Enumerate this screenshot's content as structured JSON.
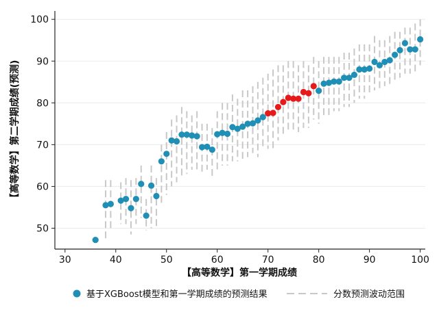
{
  "chart_data": {
    "type": "scatter",
    "xlabel": "【高等数学】第一学期成绩",
    "ylabel": "【高等数学】第二学期成绩(预测)",
    "xlim": [
      28,
      101
    ],
    "ylim": [
      45,
      102
    ],
    "xticks": [
      30,
      40,
      50,
      60,
      70,
      80,
      90,
      100
    ],
    "yticks": [
      50,
      60,
      70,
      80,
      90,
      100
    ],
    "grid": "horizontal",
    "legend_position": "bottom",
    "colors": {
      "prediction": "#1f8fb6",
      "highlight": "#e6191b",
      "range": "#c8c8c8",
      "grid": "#e6ecf0"
    },
    "series": [
      {
        "name": "基于XGBoost模型和第一学期成绩的预测结果",
        "points": [
          [
            36,
            47.2
          ],
          [
            38,
            55.5
          ],
          [
            39,
            55.8
          ],
          [
            41,
            56.6
          ],
          [
            42,
            57
          ],
          [
            43,
            54.8
          ],
          [
            44,
            57
          ],
          [
            45,
            60.6
          ],
          [
            46,
            53
          ],
          [
            47,
            60.2
          ],
          [
            48,
            57.7
          ],
          [
            49,
            66
          ],
          [
            50,
            67.8
          ],
          [
            51,
            71
          ],
          [
            52,
            70.8
          ],
          [
            53,
            72.4
          ],
          [
            54,
            72.4
          ],
          [
            55,
            72.2
          ],
          [
            56,
            72
          ],
          [
            57,
            69.4
          ],
          [
            58,
            69.5
          ],
          [
            59,
            68.8
          ],
          [
            60,
            72.5
          ],
          [
            61,
            72.8
          ],
          [
            62,
            72.6
          ],
          [
            63,
            74.2
          ],
          [
            64,
            73.8
          ],
          [
            65,
            74.3
          ],
          [
            66,
            75
          ],
          [
            67,
            75.1
          ],
          [
            68,
            75.8
          ],
          [
            69,
            76.6
          ],
          [
            70,
            77.5
          ],
          [
            71,
            77.6
          ],
          [
            72,
            79
          ],
          [
            73,
            80.2
          ],
          [
            74,
            81.2
          ],
          [
            75,
            81
          ],
          [
            76,
            81
          ],
          [
            77,
            82.6
          ],
          [
            78,
            82.3
          ],
          [
            79,
            84
          ],
          [
            80,
            82.9
          ],
          [
            81,
            84.6
          ],
          [
            82,
            84.8
          ],
          [
            83,
            85.1
          ],
          [
            84,
            85.1
          ],
          [
            85,
            86
          ],
          [
            86,
            86
          ],
          [
            87,
            86.7
          ],
          [
            88,
            88
          ],
          [
            89,
            88
          ],
          [
            90,
            88.2
          ],
          [
            91,
            89.8
          ],
          [
            92,
            89
          ],
          [
            93,
            89.8
          ],
          [
            94,
            90.2
          ],
          [
            95,
            91.5
          ],
          [
            96,
            92.6
          ],
          [
            97,
            94.3
          ],
          [
            98,
            92.8
          ],
          [
            99,
            92.8
          ],
          [
            100,
            95.2
          ]
        ]
      },
      {
        "name": "分数预测波动范围",
        "ranges": [
          [
            38,
            47.5,
            61.5
          ],
          [
            39,
            49.5,
            61.5
          ],
          [
            41,
            51,
            61
          ],
          [
            42,
            51,
            62
          ],
          [
            43,
            48.5,
            61.5
          ],
          [
            44,
            51,
            62
          ],
          [
            45,
            52.5,
            65
          ],
          [
            46,
            49.5,
            57
          ],
          [
            47,
            50,
            65
          ],
          [
            48,
            50,
            62
          ],
          [
            49,
            56,
            70
          ],
          [
            50,
            58,
            73
          ],
          [
            51,
            60,
            76
          ],
          [
            52,
            61,
            77
          ],
          [
            53,
            62,
            79
          ],
          [
            54,
            63,
            78
          ],
          [
            55,
            64,
            77
          ],
          [
            56,
            64,
            78
          ],
          [
            57,
            63,
            75
          ],
          [
            58,
            64,
            75
          ],
          [
            59,
            62,
            74
          ],
          [
            60,
            64,
            78
          ],
          [
            61,
            65,
            80
          ],
          [
            62,
            65,
            80
          ],
          [
            63,
            66,
            82
          ],
          [
            64,
            66,
            81
          ],
          [
            65,
            66,
            83
          ],
          [
            66,
            67,
            83
          ],
          [
            67,
            68,
            84
          ],
          [
            68,
            67,
            85
          ],
          [
            69,
            69,
            86
          ],
          [
            70,
            69,
            87
          ],
          [
            71,
            69,
            88
          ],
          [
            72,
            71,
            89
          ],
          [
            73,
            72,
            89
          ],
          [
            74,
            73,
            90
          ],
          [
            75,
            73,
            90
          ],
          [
            76,
            73,
            89
          ],
          [
            77,
            74,
            90
          ],
          [
            78,
            74,
            89
          ],
          [
            79,
            76,
            91
          ],
          [
            80,
            75,
            90
          ],
          [
            81,
            77,
            91
          ],
          [
            82,
            77,
            91
          ],
          [
            83,
            78,
            91
          ],
          [
            84,
            78,
            91
          ],
          [
            85,
            79,
            92
          ],
          [
            86,
            79,
            92
          ],
          [
            87,
            80,
            93
          ],
          [
            88,
            81,
            94
          ],
          [
            89,
            81,
            94
          ],
          [
            90,
            82,
            94
          ],
          [
            91,
            83,
            96
          ],
          [
            92,
            83,
            95
          ],
          [
            93,
            84,
            95
          ],
          [
            94,
            84,
            96
          ],
          [
            95,
            85,
            97
          ],
          [
            96,
            86,
            97
          ],
          [
            97,
            87,
            98
          ],
          [
            98,
            87,
            98
          ],
          [
            99,
            87,
            99
          ],
          [
            100,
            89,
            100
          ]
        ]
      }
    ],
    "highlight_x_range": [
      70,
      79
    ]
  },
  "legend": {
    "item1": "基于XGBoost模型和第一学期成绩的预测结果",
    "item2": "分数预测波动范围"
  }
}
